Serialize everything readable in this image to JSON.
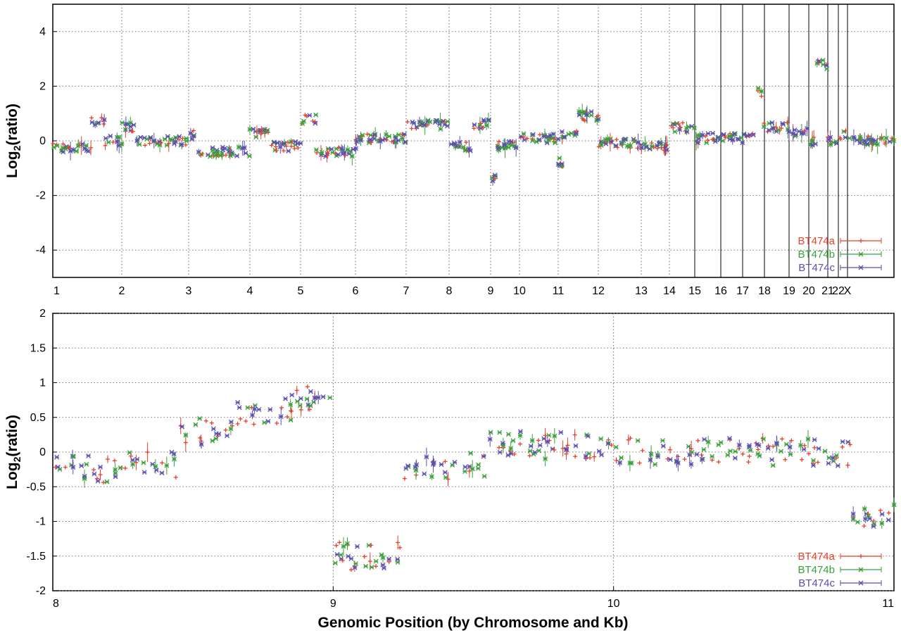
{
  "chart_data": [
    {
      "type": "scatter",
      "panel": "top",
      "ylabel_base": "Log",
      "ylabel_sub": "2",
      "ylabel_rest": "(ratio)",
      "ylim": [
        -5,
        5
      ],
      "yticks": [
        4,
        2,
        0,
        -2,
        -4
      ],
      "grid": true,
      "legend_position": "bottom-right",
      "chromosome_labels": [
        "1",
        "2",
        "3",
        "4",
        "5",
        "6",
        "7",
        "8",
        "9",
        "10",
        "11",
        "12",
        "13",
        "14",
        "15",
        "16",
        "17",
        "18",
        "19",
        "20",
        "21",
        "22",
        "X"
      ],
      "series": [
        {
          "name": "BT474a",
          "color": "#e8412c"
        },
        {
          "name": "BT474b",
          "color": "#3aa03a"
        },
        {
          "name": "BT474c",
          "color": "#5b4fb0"
        }
      ],
      "segments": [
        {
          "chrom": "1",
          "from": 0.0,
          "to": 0.55,
          "level": -0.25
        },
        {
          "chrom": "1",
          "from": 0.55,
          "to": 0.75,
          "level": 0.75
        },
        {
          "chrom": "1",
          "from": 0.75,
          "to": 1.0,
          "level": 0.0
        },
        {
          "chrom": "2",
          "from": 0.0,
          "to": 0.2,
          "level": 0.5
        },
        {
          "chrom": "2",
          "from": 0.2,
          "to": 1.0,
          "level": 0.0
        },
        {
          "chrom": "3",
          "from": 0.0,
          "to": 0.15,
          "level": 0.2
        },
        {
          "chrom": "3",
          "from": 0.15,
          "to": 1.0,
          "level": -0.4
        },
        {
          "chrom": "4",
          "from": 0.0,
          "to": 0.4,
          "level": 0.3
        },
        {
          "chrom": "4",
          "from": 0.4,
          "to": 1.0,
          "level": -0.2
        },
        {
          "chrom": "5",
          "from": 0.0,
          "to": 0.3,
          "level": 0.8
        },
        {
          "chrom": "5",
          "from": 0.3,
          "to": 1.0,
          "level": -0.4
        },
        {
          "chrom": "6",
          "from": 0.0,
          "to": 1.0,
          "level": 0.1
        },
        {
          "chrom": "7",
          "from": 0.0,
          "to": 1.0,
          "level": 0.6
        },
        {
          "chrom": "8",
          "from": 0.0,
          "to": 0.55,
          "level": -0.2
        },
        {
          "chrom": "8",
          "from": 0.55,
          "to": 1.0,
          "level": 0.6
        },
        {
          "chrom": "9",
          "from": 0.0,
          "to": 0.2,
          "level": -1.4
        },
        {
          "chrom": "9",
          "from": 0.2,
          "to": 1.0,
          "level": -0.2
        },
        {
          "chrom": "10",
          "from": 0.0,
          "to": 1.0,
          "level": 0.1
        },
        {
          "chrom": "11",
          "from": 0.0,
          "to": 0.1,
          "level": -0.8
        },
        {
          "chrom": "11",
          "from": 0.1,
          "to": 0.5,
          "level": 0.2
        },
        {
          "chrom": "11",
          "from": 0.5,
          "to": 1.0,
          "level": 0.9
        },
        {
          "chrom": "12",
          "from": 0.0,
          "to": 1.0,
          "level": -0.1
        },
        {
          "chrom": "13",
          "from": 0.0,
          "to": 1.0,
          "level": -0.2
        },
        {
          "chrom": "14",
          "from": 0.0,
          "to": 1.0,
          "level": 0.5
        },
        {
          "chrom": "15",
          "from": 0.0,
          "to": 1.0,
          "level": 0.1
        },
        {
          "chrom": "16",
          "from": 0.0,
          "to": 1.0,
          "level": 0.1
        },
        {
          "chrom": "17",
          "from": 0.0,
          "to": 0.5,
          "level": 0.2
        },
        {
          "chrom": "17",
          "from": 0.5,
          "to": 1.0,
          "level": 1.8
        },
        {
          "chrom": "18",
          "from": 0.0,
          "to": 1.0,
          "level": 0.5
        },
        {
          "chrom": "19",
          "from": 0.0,
          "to": 1.0,
          "level": 0.3
        },
        {
          "chrom": "20",
          "from": 0.0,
          "to": 0.4,
          "level": 0.0
        },
        {
          "chrom": "20",
          "from": 0.4,
          "to": 1.0,
          "level": 2.8
        },
        {
          "chrom": "21",
          "from": 0.0,
          "to": 1.0,
          "level": 0.0
        },
        {
          "chrom": "22",
          "from": 0.0,
          "to": 1.0,
          "level": 0.2
        },
        {
          "chrom": "X",
          "from": 0.0,
          "to": 1.0,
          "level": 0.0
        }
      ]
    },
    {
      "type": "scatter",
      "panel": "bottom",
      "ylabel_base": "Log",
      "ylabel_sub": "2",
      "ylabel_rest": "(ratio)",
      "xlabel": "Genomic Position (by Chromosome and Kb)",
      "ylim": [
        -2,
        2
      ],
      "yticks": [
        "2",
        "1.5",
        "1",
        "0.5",
        "0",
        "-0.5",
        "-1",
        "-1.5",
        "-2"
      ],
      "xticks": [
        "8",
        "9",
        "10",
        "11"
      ],
      "xlim": [
        8,
        11
      ],
      "grid": true,
      "legend_position": "bottom-right",
      "series": [
        {
          "name": "BT474a",
          "color": "#e8412c"
        },
        {
          "name": "BT474b",
          "color": "#3aa03a"
        },
        {
          "name": "BT474c",
          "color": "#5b4fb0"
        }
      ],
      "segments": [
        {
          "from": 8.0,
          "to": 8.25,
          "level": -0.25
        },
        {
          "from": 8.25,
          "to": 8.45,
          "level": -0.2
        },
        {
          "from": 8.45,
          "to": 8.65,
          "level": 0.3
        },
        {
          "from": 8.65,
          "to": 8.85,
          "level": 0.6
        },
        {
          "from": 8.85,
          "to": 9.0,
          "level": 0.75
        },
        {
          "from": 9.0,
          "to": 9.25,
          "level": -1.5
        },
        {
          "from": 9.25,
          "to": 9.55,
          "level": -0.2
        },
        {
          "from": 9.55,
          "to": 10.0,
          "level": 0.1
        },
        {
          "from": 10.0,
          "to": 10.85,
          "level": 0.0
        },
        {
          "from": 10.85,
          "to": 11.0,
          "level": -0.9
        }
      ]
    }
  ]
}
